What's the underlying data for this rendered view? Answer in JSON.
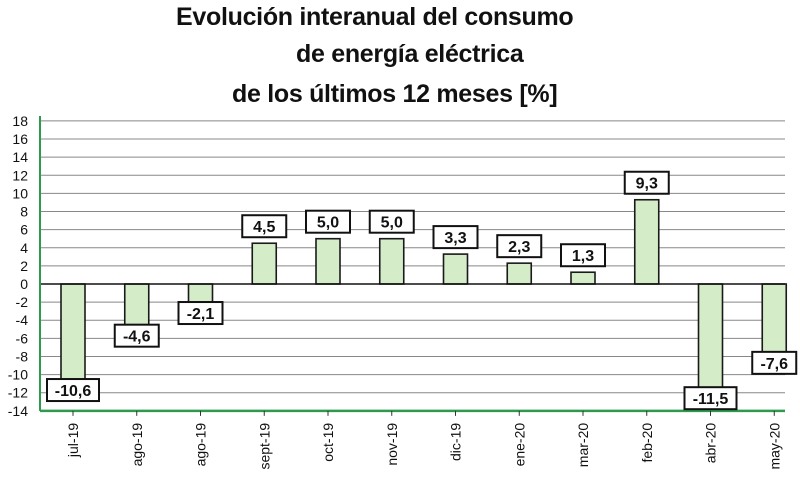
{
  "title_lines": [
    "Evolución interanual del consumo",
    "de energía eléctrica",
    "de los últimos 12 meses [%]"
  ],
  "colors": {
    "bar_fill": "#d4ecc8",
    "bar_stroke": "#1a1a1a",
    "axis": "#2e9a4e",
    "grid": "#888888"
  },
  "chart_data": {
    "type": "bar",
    "title": "Evolución interanual del consumo de energía eléctrica de los últimos 12 meses [%]",
    "categories": [
      "jul-19",
      "ago-19",
      "ago-19",
      "sept-19",
      "oct-19",
      "nov-19",
      "dic-19",
      "ene-20",
      "mar-20",
      "feb-20",
      "abr-20",
      "may-20"
    ],
    "values": [
      -10.6,
      -4.6,
      -2.1,
      4.5,
      5.0,
      5.0,
      3.3,
      2.3,
      1.3,
      9.3,
      -11.5,
      -7.6
    ],
    "data_labels": [
      "-10,6",
      "-4,6",
      "-2,1",
      "4,5",
      "5,0",
      "5,0",
      "3,3",
      "2,3",
      "1,3",
      "9,3",
      "-11,5",
      "-7,6"
    ],
    "yticks": [
      "18",
      "16",
      "14",
      "12",
      "10",
      "8",
      "6",
      "4",
      "2",
      "0",
      "-2",
      "-4",
      "-6",
      "-8",
      "-10",
      "-12",
      "-14"
    ],
    "ylim": [
      -14,
      18
    ],
    "grid": true,
    "legend": "none"
  }
}
